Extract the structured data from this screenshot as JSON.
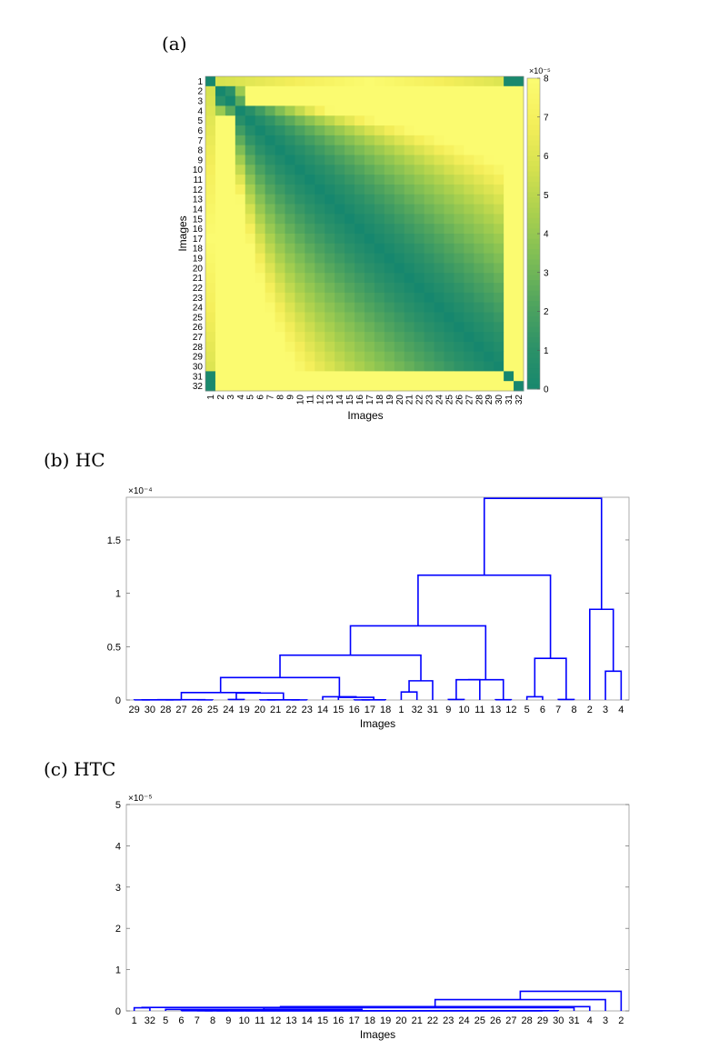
{
  "chart_data": [
    {
      "type": "heatmap",
      "panel": "(a)",
      "xlabel": "Images",
      "ylabel": "Images",
      "labels": [
        "1",
        "2",
        "3",
        "4",
        "5",
        "6",
        "7",
        "8",
        "9",
        "10",
        "11",
        "12",
        "13",
        "14",
        "15",
        "16",
        "17",
        "18",
        "19",
        "20",
        "21",
        "22",
        "23",
        "24",
        "25",
        "26",
        "27",
        "28",
        "29",
        "30",
        "31",
        "32"
      ],
      "colorbar": {
        "min": 0,
        "max": 8,
        "multiplier": "×10⁻⁵",
        "ticks": [
          "0",
          "1",
          "2",
          "3",
          "4",
          "5",
          "6",
          "7",
          "8"
        ]
      },
      "colormap": [
        "#16876e",
        "#2d9268",
        "#51a55e",
        "#7ebd55",
        "#a9d04e",
        "#d4e14f",
        "#f4ee5a",
        "#fbfb70"
      ]
    },
    {
      "type": "dendrogram",
      "panel": "(b) HC",
      "xlabel": "Images",
      "ylim": [
        0,
        0.00019
      ],
      "multiplier": "×10⁻⁴",
      "yticks": [
        {
          "v": 0,
          "t": "0"
        },
        {
          "v": 5e-05,
          "t": "0.5"
        },
        {
          "v": 0.0001,
          "t": "1"
        },
        {
          "v": 0.00015,
          "t": "1.5"
        }
      ],
      "leaf_order": [
        "29",
        "30",
        "28",
        "27",
        "26",
        "25",
        "24",
        "19",
        "20",
        "21",
        "22",
        "23",
        "14",
        "15",
        "16",
        "17",
        "18",
        "1",
        "32",
        "31",
        "9",
        "10",
        "11",
        "13",
        "12",
        "5",
        "6",
        "7",
        "8",
        "2",
        "3",
        "4"
      ],
      "color": "#0000ff"
    },
    {
      "type": "dendrogram",
      "panel": "(c) HTC",
      "xlabel": "Images",
      "ylim": [
        0,
        5e-05
      ],
      "multiplier": "×10⁻⁵",
      "yticks": [
        {
          "v": 0,
          "t": "0"
        },
        {
          "v": 1e-05,
          "t": "1"
        },
        {
          "v": 2e-05,
          "t": "2"
        },
        {
          "v": 3e-05,
          "t": "3"
        },
        {
          "v": 4e-05,
          "t": "4"
        },
        {
          "v": 5e-05,
          "t": "5"
        }
      ],
      "leaf_order": [
        "1",
        "32",
        "5",
        "6",
        "7",
        "8",
        "9",
        "10",
        "11",
        "12",
        "13",
        "14",
        "15",
        "16",
        "17",
        "18",
        "19",
        "20",
        "21",
        "22",
        "23",
        "24",
        "25",
        "26",
        "27",
        "28",
        "29",
        "30",
        "31",
        "4",
        "3",
        "2"
      ],
      "color": "#0000ff"
    }
  ]
}
